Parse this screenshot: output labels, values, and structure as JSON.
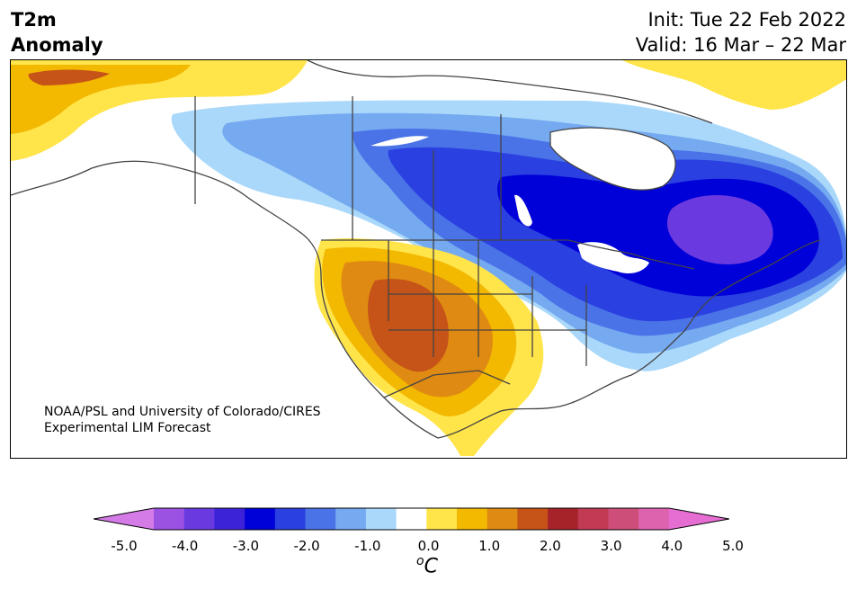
{
  "title": {
    "left_line1": "T2m",
    "left_line2": "Anomaly",
    "right_line1": "Init: Tue 22 Feb 2022",
    "right_line2": "Valid: 16 Mar – 22 Mar"
  },
  "credit": {
    "line1": "NOAA/PSL and University of Colorado/CIRES",
    "line2": "Experimental LIM Forecast"
  },
  "colorbar": {
    "tick_labels": [
      "-5.0",
      "-4.0",
      "-3.0",
      "-2.0",
      "-1.0",
      "0.0",
      "1.0",
      "2.0",
      "3.0",
      "4.0",
      "5.0"
    ],
    "unit_prefix": "o",
    "unit": "C",
    "range": [
      -5.0,
      5.0
    ],
    "colors": [
      "#d57be8",
      "#9b52e2",
      "#6a3ae0",
      "#3d23d8",
      "#0000d8",
      "#2a40e0",
      "#4a73e8",
      "#75a9f0",
      "#aad8fa",
      "#ffffff",
      "#ffe44a",
      "#f3b800",
      "#df8a12",
      "#c65317",
      "#a6232a",
      "#c33a55",
      "#cd4f79",
      "#dd63af",
      "#e66ed3"
    ],
    "extend": "both"
  },
  "map": {
    "region": "North America",
    "variable": "2m temperature anomaly",
    "field_colors": {
      "cold_1": "#aad8fa",
      "cold_2": "#75a9f0",
      "cold_3": "#4a73e8",
      "cold_4": "#2a40e0",
      "cold_5": "#0000d8",
      "cold_6": "#6a3ae0",
      "warm_1": "#ffe44a",
      "warm_2": "#f3b800",
      "warm_3": "#df8a12",
      "warm_4": "#c65317"
    },
    "coastline_color": "#444444"
  }
}
